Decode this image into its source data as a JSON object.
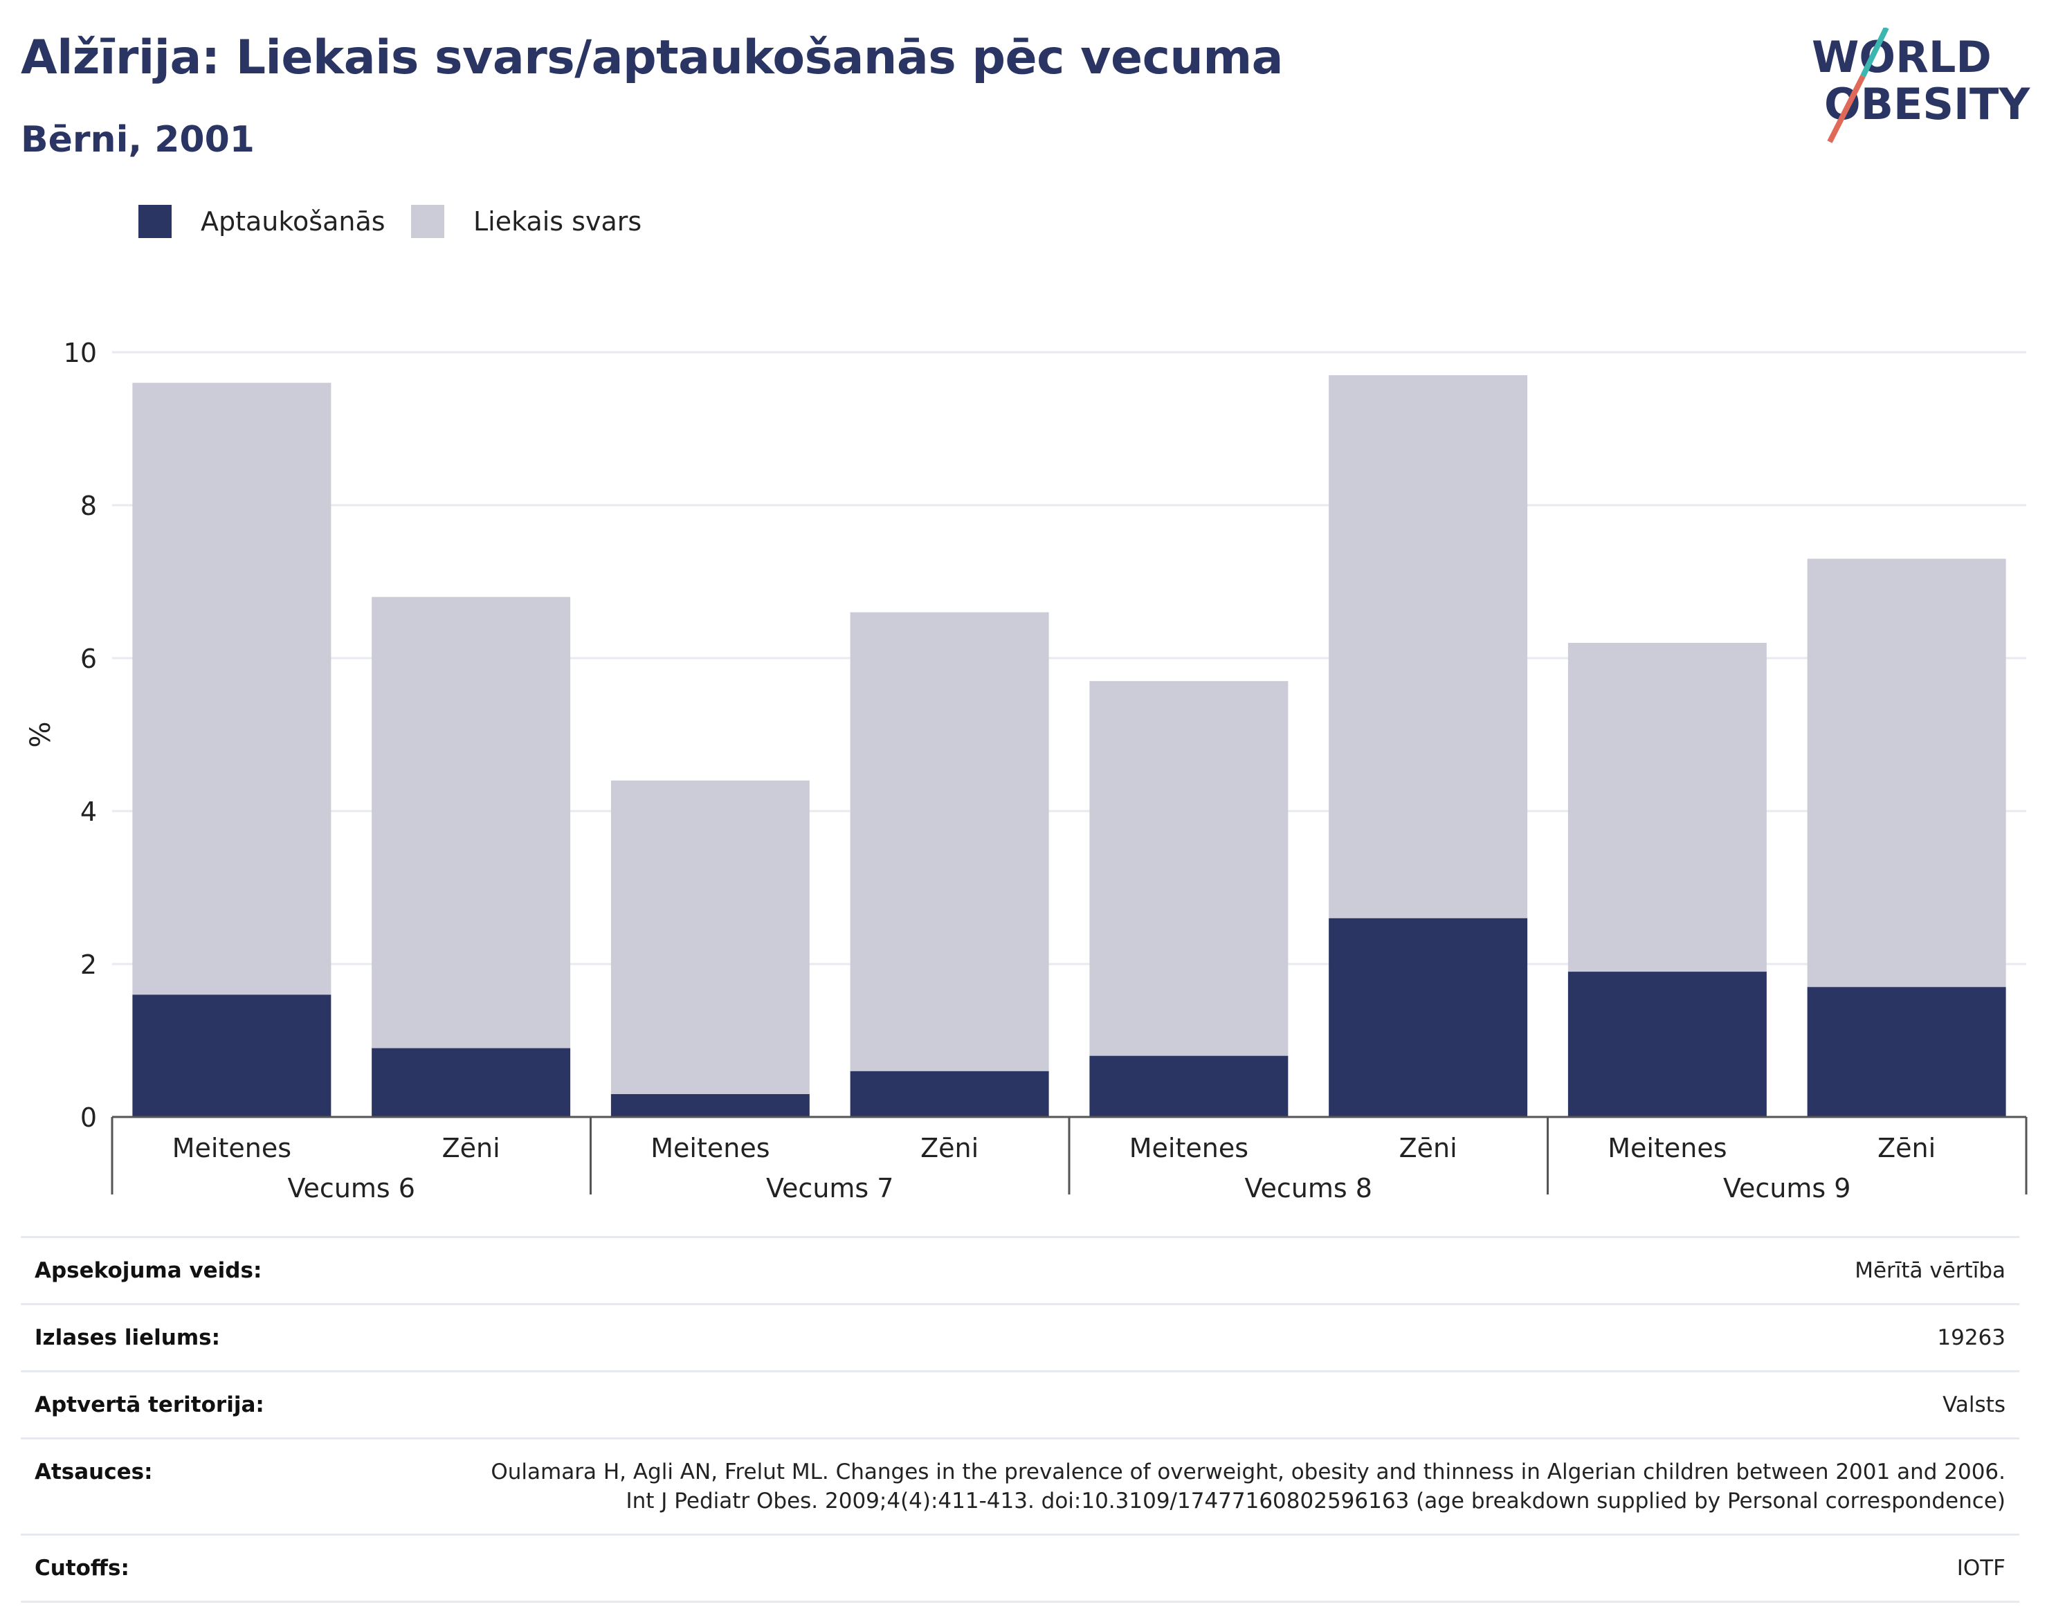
{
  "header": {
    "title": "Alžīrija: Liekais svars/aptaukošanās pēc vecuma",
    "subtitle": "Bērni, 2001"
  },
  "logo": {
    "line1": "WORLD",
    "line2": "OBESITY"
  },
  "colors": {
    "obesity": "#2a3563",
    "overweight": "#cbccd8",
    "title": "#2a3563",
    "logo_teal": "#3bb6b0",
    "logo_coral": "#e06a5a"
  },
  "chart_data": {
    "type": "bar",
    "stacked": true,
    "ylabel": "%",
    "ylim": [
      0,
      10
    ],
    "yticks": [
      0,
      2,
      4,
      6,
      8,
      10
    ],
    "grid": true,
    "legend_position": "top-left",
    "groups": [
      "Vecums 6",
      "Vecums 7",
      "Vecums 8",
      "Vecums 9"
    ],
    "categories": [
      "Meitenes",
      "Zēni",
      "Meitenes",
      "Zēni",
      "Meitenes",
      "Zēni",
      "Meitenes",
      "Zēni"
    ],
    "series": [
      {
        "name": "Aptaukošanās",
        "values": [
          1.6,
          0.9,
          0.3,
          0.6,
          0.8,
          2.6,
          1.9,
          1.7
        ]
      },
      {
        "name": "Liekais svars",
        "values": [
          8.0,
          5.9,
          4.1,
          6.0,
          4.9,
          7.1,
          4.3,
          5.6
        ]
      }
    ]
  },
  "meta": [
    {
      "key": "Apsekojuma veids:",
      "value": "Mērītā vērtība"
    },
    {
      "key": "Izlases lielums:",
      "value": "19263"
    },
    {
      "key": "Aptvertā teritorija:",
      "value": "Valsts"
    },
    {
      "key": "Atsauces:",
      "value": "Oulamara H, Agli AN, Frelut ML. Changes in the prevalence of overweight, obesity and thinness in Algerian children between 2001 and 2006. Int J Pediatr Obes. 2009;4(4):411-413. doi:10.3109/17477160802596163 (age breakdown supplied by Personal correspondence)"
    },
    {
      "key": "Cutoffs:",
      "value": "IOTF"
    }
  ]
}
